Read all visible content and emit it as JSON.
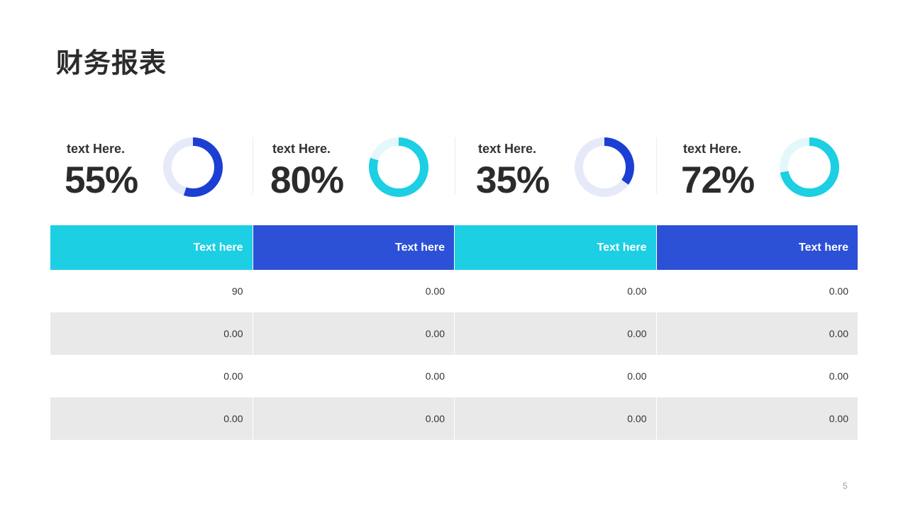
{
  "page": {
    "title": "财务报表",
    "page_number": "5"
  },
  "colors": {
    "cyan": "#1ccfe3",
    "cyan_track": "#e4f8fb",
    "blue": "#1b3fd3",
    "blue_track": "#e6eaf8",
    "header_cyan": "#1ccfe3",
    "header_blue": "#2c50d6"
  },
  "stats": [
    {
      "label": "text Here.",
      "value_text": "55%",
      "fraction": 0.55,
      "color": "#1b3fd3",
      "track": "#e6eaf8"
    },
    {
      "label": "text Here.",
      "value_text": "80%",
      "fraction": 0.8,
      "color": "#1ccfe3",
      "track": "#e4f8fb"
    },
    {
      "label": "text Here.",
      "value_text": "35%",
      "fraction": 0.35,
      "color": "#1b3fd3",
      "track": "#e6eaf8"
    },
    {
      "label": "text Here.",
      "value_text": "72%",
      "fraction": 0.72,
      "color": "#1ccfe3",
      "track": "#e4f8fb"
    }
  ],
  "chart_data": [
    {
      "type": "pie",
      "categories": [
        "text Here.",
        "text Here.",
        "text Here.",
        "text Here."
      ],
      "values": [
        55,
        80,
        35,
        72
      ],
      "title": "",
      "xlabel": "",
      "ylabel": ""
    },
    {
      "type": "table",
      "columns": [
        "Text here",
        "Text here",
        "Text here",
        "Text here"
      ],
      "rows": [
        [
          "90",
          "0.00",
          "0.00",
          "0.00"
        ],
        [
          "0.00",
          "0.00",
          "0.00",
          "0.00"
        ],
        [
          "0.00",
          "0.00",
          "0.00",
          "0.00"
        ],
        [
          "0.00",
          "0.00",
          "0.00",
          "0.00"
        ]
      ]
    }
  ],
  "table": {
    "headers": [
      {
        "label": "Text here",
        "color": "#1ccfe3"
      },
      {
        "label": "Text here",
        "color": "#2c50d6"
      },
      {
        "label": "Text here",
        "color": "#1ccfe3"
      },
      {
        "label": "Text here",
        "color": "#2c50d6"
      }
    ],
    "rows": [
      [
        "90",
        "0.00",
        "0.00",
        "0.00"
      ],
      [
        "0.00",
        "0.00",
        "0.00",
        "0.00"
      ],
      [
        "0.00",
        "0.00",
        "0.00",
        "0.00"
      ],
      [
        "0.00",
        "0.00",
        "0.00",
        "0.00"
      ]
    ]
  }
}
